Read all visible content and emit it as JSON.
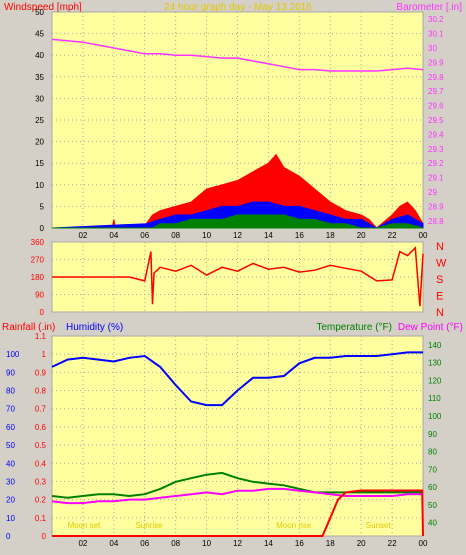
{
  "header": {
    "left": "Windspeed [mph]",
    "center": "24 hour graph day - May 13 2016",
    "right": "Barometer [.in]"
  },
  "colors": {
    "plot_bg": "#ffffa0",
    "frame": "#a8a8a8",
    "barometer": "#ff33ff",
    "gust": "#ff0000",
    "wind_avg": "#0000ff",
    "wind_low": "#008000",
    "wind_dir": "#ff0000",
    "humidity": "#0000ff",
    "temperature": "#008000",
    "dew_point": "#ff00ff",
    "rain": "#ff0000",
    "red_label": "#ff0000",
    "blue_label": "#0000ff",
    "green_label": "#008000",
    "event_label": "#e0c800"
  },
  "x_ticks": [
    "02",
    "04",
    "06",
    "08",
    "10",
    "12",
    "14",
    "16",
    "18",
    "20",
    "22",
    "00"
  ],
  "x_tick_hours": [
    2,
    4,
    6,
    8,
    10,
    12,
    14,
    16,
    18,
    20,
    22,
    24
  ],
  "chart_data": [
    {
      "type": "line",
      "name": "wind-barometer",
      "ylabel_left": "Windspeed [mph]",
      "ylabel_right": "Barometer [.in]",
      "left_ticks": [
        0,
        5,
        10,
        15,
        20,
        25,
        30,
        35,
        40,
        45,
        50
      ],
      "left_ylim": [
        0,
        50
      ],
      "right_ticks": [
        "28.8",
        "28.9",
        "29",
        "29.1",
        "29.2",
        "29.3",
        "29.4",
        "29.5",
        "29.6",
        "29.7",
        "29.8",
        "29.9",
        "30",
        "30.1",
        "30.2"
      ],
      "right_ylim": [
        28.75,
        30.25
      ],
      "series": [
        {
          "key": "barometer",
          "x": [
            0,
            1,
            2,
            3,
            4,
            5,
            6,
            7,
            8,
            9,
            10,
            11,
            12,
            13,
            14,
            15,
            16,
            17,
            18,
            19,
            20,
            21,
            22,
            23,
            24
          ],
          "values": [
            30.06,
            30.05,
            30.04,
            30.02,
            30.0,
            29.98,
            29.96,
            29.96,
            29.95,
            29.95,
            29.94,
            29.93,
            29.93,
            29.91,
            29.89,
            29.87,
            29.85,
            29.85,
            29.84,
            29.84,
            29.84,
            29.84,
            29.85,
            29.86,
            29.85
          ]
        },
        {
          "key": "wind_gust",
          "x": [
            0,
            3.9,
            4.0,
            4.1,
            6.1,
            6.5,
            7,
            8,
            9,
            10,
            11,
            12,
            13,
            14,
            14.5,
            15,
            16,
            17,
            18,
            19,
            20,
            20.5,
            21,
            22,
            22.5,
            23,
            23.5,
            24
          ],
          "values": [
            0,
            0,
            2,
            0,
            1,
            3,
            4,
            5,
            6,
            9,
            10,
            11,
            13,
            15,
            17,
            14,
            12,
            9,
            6,
            4,
            3,
            2,
            0,
            3,
            5,
            6,
            4,
            1
          ]
        },
        {
          "key": "wind_avg",
          "x": [
            0,
            6.1,
            7,
            8,
            9,
            10,
            11,
            12,
            13,
            14,
            15,
            16,
            17,
            18,
            19,
            20,
            20.5,
            21,
            22,
            23,
            24
          ],
          "values": [
            0,
            1,
            2,
            3,
            3,
            4,
            5,
            5,
            6,
            6,
            5,
            5,
            4,
            3,
            2,
            2,
            1,
            0,
            2,
            3,
            1
          ]
        },
        {
          "key": "wind_low",
          "x": [
            0,
            6.5,
            7,
            8,
            9,
            10,
            11,
            12,
            13,
            14,
            15,
            16,
            17,
            18,
            19,
            20,
            21,
            22,
            23,
            24
          ],
          "values": [
            0,
            0,
            1,
            1,
            2,
            2,
            2,
            3,
            3,
            3,
            3,
            2,
            2,
            1,
            1,
            0,
            0,
            1,
            1,
            0
          ]
        }
      ]
    },
    {
      "type": "line",
      "name": "wind-direction",
      "left_ticks": [
        0,
        90,
        180,
        270,
        360
      ],
      "left_ylim": [
        0,
        360
      ],
      "right_labels": [
        "N",
        "W",
        "S",
        "E",
        "N"
      ],
      "series": [
        {
          "key": "wind_dir",
          "x": [
            0,
            1,
            2,
            3,
            4,
            5,
            6,
            6.4,
            6.5,
            6.6,
            7,
            8,
            9,
            10,
            11,
            12,
            13,
            14,
            15,
            16,
            17,
            18,
            19,
            20,
            21,
            22,
            22.5,
            23,
            23.5,
            23.8,
            24
          ],
          "values": [
            180,
            180,
            180,
            180,
            180,
            180,
            160,
            310,
            40,
            200,
            230,
            210,
            240,
            190,
            230,
            210,
            250,
            220,
            230,
            205,
            215,
            240,
            225,
            210,
            160,
            165,
            310,
            290,
            330,
            30,
            300
          ]
        }
      ]
    },
    {
      "type": "line",
      "name": "humidity-temperature",
      "labels": {
        "rain": "Rainfall (.in)",
        "humidity": "Humidity (%)",
        "temperature": "Temperature (°F)",
        "dew_point": "Dew Point (°F)"
      },
      "rain_ticks": [
        "0",
        "0.1",
        "0.2",
        "0.3",
        "0.4",
        "0.5",
        "0.6",
        "0.7",
        "0.8",
        "0.9",
        "1",
        "1.1"
      ],
      "rain_ylim": [
        0,
        1.1
      ],
      "humidity_ticks": [
        0,
        10,
        20,
        30,
        40,
        50,
        60,
        70,
        80,
        90,
        100
      ],
      "humidity_ylim": [
        0,
        110
      ],
      "temp_ticks": [
        40,
        50,
        60,
        70,
        80,
        90,
        100,
        110,
        120,
        130,
        140
      ],
      "temp_ylim": [
        32.5,
        145
      ],
      "series": [
        {
          "key": "humidity",
          "x": [
            0,
            1,
            2,
            3,
            4,
            5,
            6,
            7,
            8,
            9,
            10,
            11,
            12,
            13,
            14,
            15,
            16,
            17,
            18,
            19,
            20,
            21,
            22,
            23,
            24
          ],
          "values": [
            93,
            97,
            98,
            97,
            96,
            98,
            99,
            93,
            83,
            74,
            72,
            72,
            80,
            87,
            87,
            88,
            95,
            98,
            98,
            99,
            99,
            99,
            100,
            101,
            101
          ]
        },
        {
          "key": "temperature",
          "x": [
            0,
            1,
            2,
            3,
            4,
            5,
            6,
            7,
            8,
            9,
            10,
            11,
            12,
            13,
            14,
            15,
            16,
            17,
            18,
            19,
            20,
            21,
            22,
            23,
            24
          ],
          "values": [
            55,
            54,
            55,
            56,
            56,
            55,
            56,
            59,
            63,
            65,
            67,
            68,
            65,
            63,
            62,
            61,
            59,
            57,
            57,
            57,
            57,
            57,
            57,
            57,
            57
          ]
        },
        {
          "key": "dew_point",
          "x": [
            0,
            1,
            2,
            3,
            4,
            5,
            6,
            7,
            8,
            9,
            10,
            11,
            12,
            13,
            14,
            15,
            16,
            17,
            18,
            19,
            20,
            21,
            22,
            23,
            24
          ],
          "values": [
            52,
            51,
            51,
            52,
            52,
            53,
            53,
            54,
            55,
            56,
            57,
            56,
            58,
            58,
            59,
            59,
            58,
            57,
            56,
            55,
            55,
            55,
            55,
            56,
            56
          ]
        },
        {
          "key": "rain",
          "x": [
            0,
            17.5,
            18,
            18.5,
            19,
            20,
            21,
            22,
            23,
            23.95,
            24
          ],
          "values": [
            0,
            0,
            0.1,
            0.2,
            0.24,
            0.25,
            0.25,
            0.25,
            0.25,
            0.25,
            0
          ]
        }
      ],
      "events": [
        {
          "label": "Moon set",
          "x": 1.0
        },
        {
          "label": "Sunrise",
          "x": 5.4
        },
        {
          "label": "Moon rise",
          "x": 14.5
        },
        {
          "label": "Sunset",
          "x": 20.3
        }
      ]
    }
  ]
}
